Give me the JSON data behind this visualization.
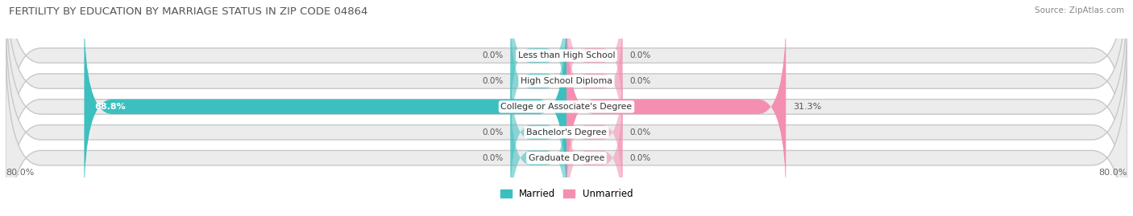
{
  "title": "FERTILITY BY EDUCATION BY MARRIAGE STATUS IN ZIP CODE 04864",
  "source": "Source: ZipAtlas.com",
  "categories": [
    "Less than High School",
    "High School Diploma",
    "College or Associate's Degree",
    "Bachelor's Degree",
    "Graduate Degree"
  ],
  "married_values": [
    0.0,
    0.0,
    68.8,
    0.0,
    0.0
  ],
  "unmarried_values": [
    0.0,
    0.0,
    31.3,
    0.0,
    0.0
  ],
  "x_min": -80.0,
  "x_max": 80.0,
  "married_color": "#3dbfbf",
  "unmarried_color": "#f48fb1",
  "married_color_dark": "#2aa8a8",
  "unmarried_color_dark": "#e8739a",
  "bar_bg_color": "#e8e8e8",
  "bar_bg_outline": "#d0d0d0",
  "axis_label_left": "80.0%",
  "axis_label_right": "80.0%",
  "title_fontsize": 9.5,
  "source_fontsize": 7.5,
  "bar_height": 0.58,
  "zero_bar_width": 8.0,
  "legend_married": "Married",
  "legend_unmarried": "Unmarried"
}
